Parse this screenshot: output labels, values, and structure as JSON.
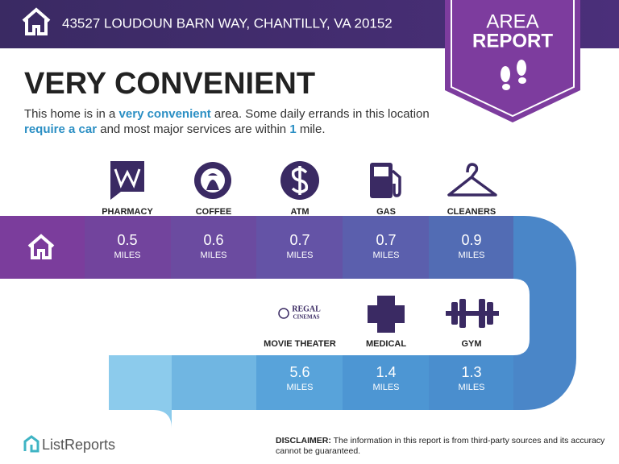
{
  "header": {
    "address": "43527 LOUDOUN BARN WAY, CHANTILLY, VA 20152"
  },
  "badge": {
    "line1": "AREA",
    "line2": "REPORT"
  },
  "headline": "VERY CONVENIENT",
  "description": [
    "This home is in a ",
    "very convenient",
    " area. Some daily errands in this location ",
    "require a car",
    " and most major services are within ",
    "1",
    " mile."
  ],
  "amenities": [
    {
      "label": "PHARMACY",
      "distance": 0.5,
      "unit": "MILES"
    },
    {
      "label": "COFFEE",
      "distance": 0.6,
      "unit": "MILES"
    },
    {
      "label": "ATM",
      "distance": 0.7,
      "unit": "MILES"
    },
    {
      "label": "GAS",
      "distance": 0.7,
      "unit": "MILES"
    },
    {
      "label": "CLEANERS",
      "distance": 0.9,
      "unit": "MILES"
    },
    {
      "label": "MOVIE THEATER",
      "distance": 5.6,
      "unit": "MILES",
      "logo": [
        "REGAL",
        "CINEMAS"
      ]
    },
    {
      "label": "MEDICAL",
      "distance": 1.4,
      "unit": "MILES"
    },
    {
      "label": "GYM",
      "distance": 1.3,
      "unit": "MILES"
    }
  ],
  "footer": {
    "brand": "ListReports",
    "disclaimer_label": "DISCLAIMER:",
    "disclaimer_text": " The information in this report is from third-party sources and its accuracy cannot be guaranteed."
  }
}
